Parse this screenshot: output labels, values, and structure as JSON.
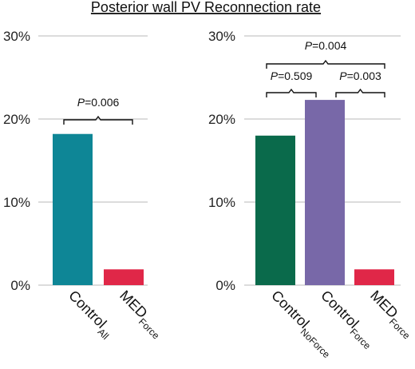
{
  "chart_data": {
    "title": "Posterior wall PV Reconnection rate",
    "type": "bar",
    "y_tick_labels": [
      "0%",
      "10%",
      "20%",
      "30%"
    ],
    "panels": [
      {
        "ylim": [
          0,
          30
        ],
        "grid": true,
        "categories": [
          {
            "main": "Control",
            "sub": "All"
          },
          {
            "main": "MED",
            "sub": "Force"
          }
        ],
        "values": [
          18.2,
          1.9
        ],
        "colors": [
          "#0E8696",
          "#E02748"
        ],
        "comparisons": [
          {
            "p_label": "P",
            "p_value": "=0.006",
            "between": [
              0,
              1
            ]
          }
        ]
      },
      {
        "ylim": [
          0,
          30
        ],
        "grid": true,
        "categories": [
          {
            "main": "Control",
            "sub": "NoForce"
          },
          {
            "main": "Control",
            "sub": "Force"
          },
          {
            "main": "MED",
            "sub": "Force"
          }
        ],
        "values": [
          18.0,
          22.3,
          1.9
        ],
        "colors": [
          "#0A6A4B",
          "#7868A8",
          "#E02748"
        ],
        "comparisons": [
          {
            "p_label": "P",
            "p_value": "=0.004",
            "between": [
              0,
              2
            ]
          },
          {
            "p_label": "P",
            "p_value": "=0.509",
            "between": [
              0,
              1
            ]
          },
          {
            "p_label": "P",
            "p_value": "=0.003",
            "between": [
              1,
              2
            ]
          }
        ]
      }
    ]
  }
}
